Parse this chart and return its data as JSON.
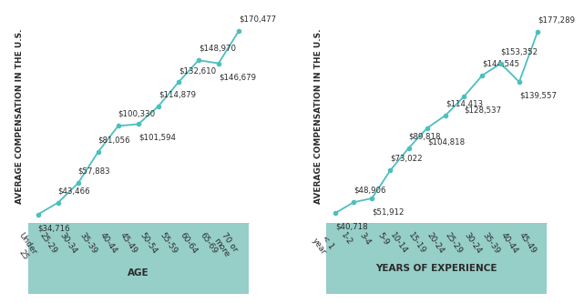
{
  "chart1": {
    "categories": [
      "Under\n25",
      "25-29",
      "30-34",
      "35-39",
      "40-44",
      "45-49",
      "50-54",
      "55-59",
      "60-64",
      "65-69",
      "70 or\nmore"
    ],
    "values": [
      34716,
      43466,
      57883,
      81056,
      100330,
      101594,
      114879,
      132610,
      148970,
      146679,
      170477
    ],
    "labels": [
      "$34,716",
      "$43,466",
      "$57,883",
      "$81,056",
      "$100,330",
      "$101,594",
      "$114,879",
      "$132,610",
      "$148,970",
      "$146,679",
      "$170,477"
    ],
    "label_above": [
      false,
      true,
      true,
      true,
      true,
      false,
      true,
      true,
      true,
      false,
      true
    ],
    "xlabel": "AGE",
    "ylabel": "AVERAGE COMPENSATION IN THE U.S."
  },
  "chart2": {
    "categories": [
      "< 1\nyear",
      "1-2",
      "3-4",
      "5-9",
      "10-14",
      "15-19",
      "20-24",
      "25-29",
      "30-24",
      "35-39",
      "40-44",
      "45-49"
    ],
    "values": [
      40718,
      48906,
      51912,
      73022,
      89818,
      104818,
      114413,
      128537,
      144545,
      153352,
      139557,
      177289
    ],
    "labels": [
      "$40,718",
      "$48,906",
      "$51,912",
      "$73,022",
      "$89,818",
      "$104,818",
      "$114,413",
      "$128,537",
      "$144,545",
      "$153,352",
      "$139,557",
      "$177,289"
    ],
    "label_above": [
      false,
      true,
      false,
      true,
      true,
      false,
      true,
      false,
      true,
      true,
      false,
      true
    ],
    "xlabel": "YEARS OF EXPERIENCE",
    "ylabel": "AVERAGE COMPENSATION IN THE U.S."
  },
  "line_color": "#4DBFBF",
  "bg_color": "#ffffff",
  "tick_bg_color": "#96CEC8",
  "label_fontsize": 6.2,
  "xlabel_fontsize": 7.5,
  "ylabel_fontsize": 6.5,
  "tick_fontsize": 6.5,
  "tick_rotation": -55
}
